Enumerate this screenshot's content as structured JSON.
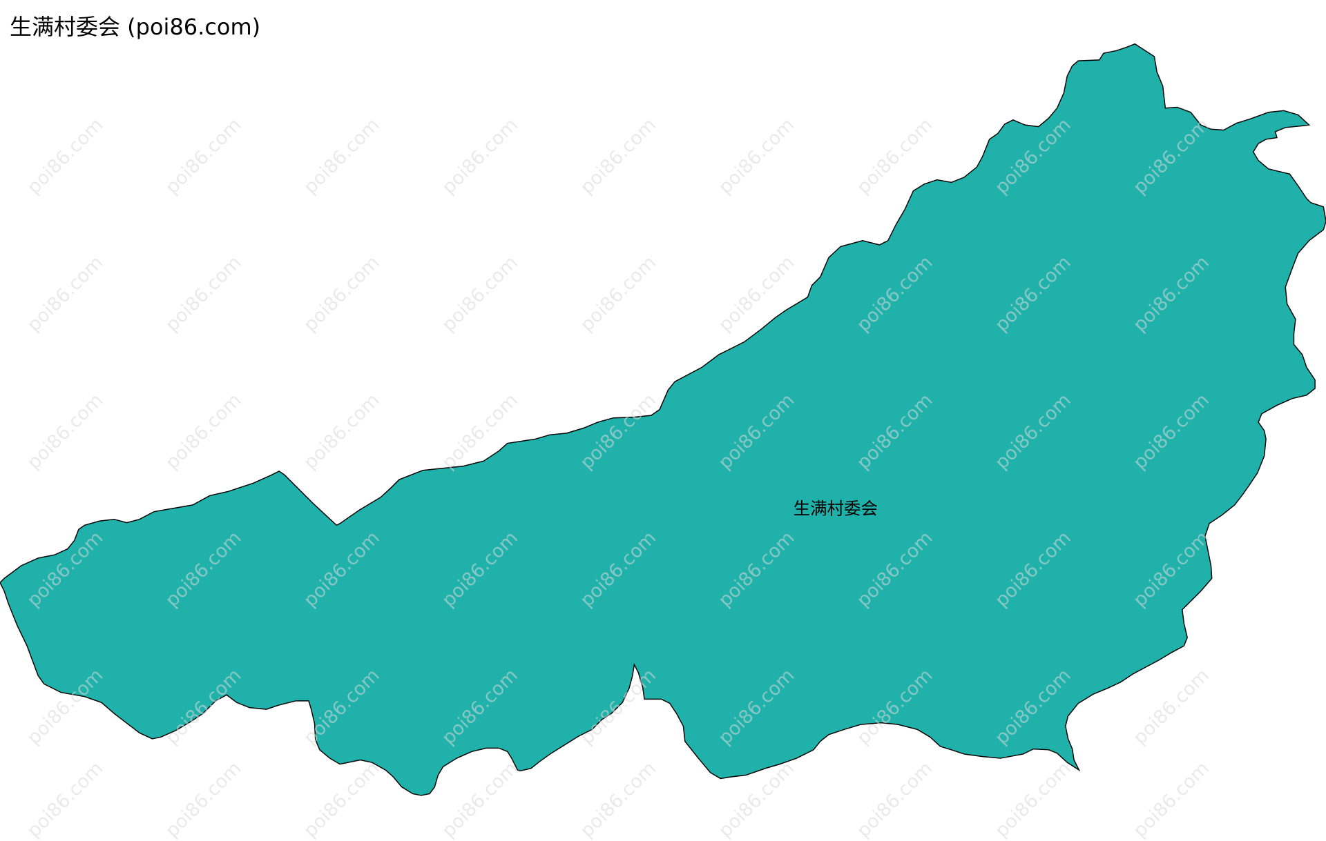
{
  "title": "生满村委会 (poi86.com)",
  "map": {
    "region_name": "生满村委会",
    "fill_color": "#20B2AA",
    "stroke_color": "#000000",
    "watermark": "poi86.com"
  }
}
